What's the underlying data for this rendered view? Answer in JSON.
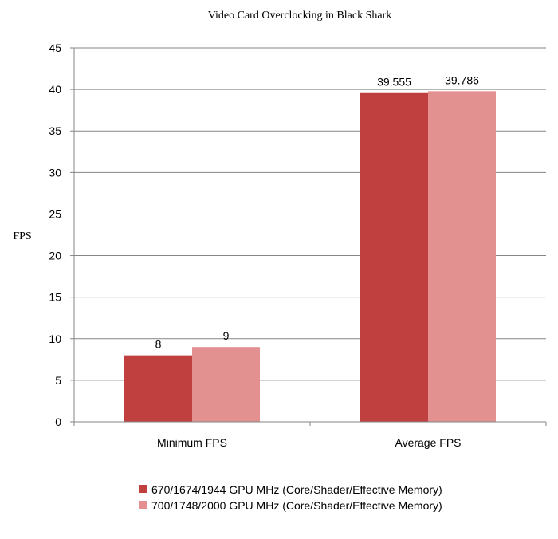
{
  "chart_data": {
    "type": "bar",
    "title": "Video Card Overclocking in Black Shark",
    "xlabel": "",
    "ylabel": "FPS",
    "ylim": [
      0,
      45
    ],
    "yticks": [
      0,
      5,
      10,
      15,
      20,
      25,
      30,
      35,
      40,
      45
    ],
    "categories": [
      "Minimum FPS",
      "Average FPS"
    ],
    "series": [
      {
        "name": "670/1674/1944 GPU MHz (Core/Shader/Effective Memory)",
        "values": [
          8,
          39.555
        ],
        "labels": [
          "8",
          "39.555"
        ],
        "color": "#c0403f"
      },
      {
        "name": "700/1748/2000  GPU MHz (Core/Shader/Effective Memory)",
        "values": [
          9,
          39.786
        ],
        "labels": [
          "9",
          "39.786"
        ],
        "color": "#e39090"
      }
    ],
    "grid": true,
    "legend_position": "bottom"
  }
}
